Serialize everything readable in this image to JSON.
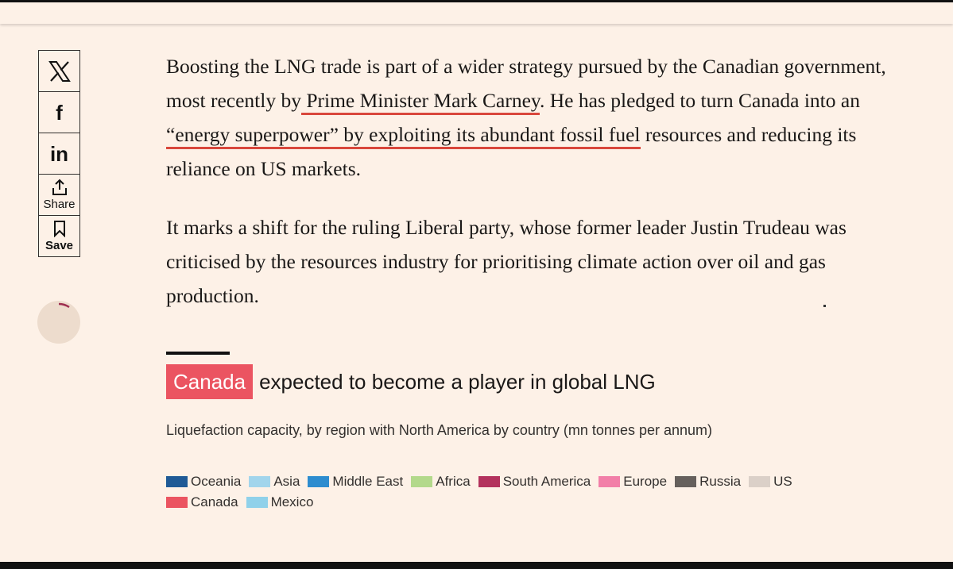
{
  "share": {
    "buttons": [
      "f",
      "in"
    ],
    "share_label": "Share",
    "save_label": "Save"
  },
  "article": {
    "paragraphs": [
      [
        {
          "text": "Boosting the LNG trade is part of a wider strategy pursued by the Canadian government, most recently by"
        },
        {
          "text": " Prime Minister Mark Carney",
          "link": true
        },
        {
          "text": ". He has pledged to turn Canada into an "
        },
        {
          "text": "“energy superpower” by exploiting its abundant fossil fuel",
          "link": true
        },
        {
          "text": " resources and reducing its reliance on US markets."
        }
      ],
      [
        {
          "text": "It marks a shift for the ruling Liberal party, whose former leader Justin Trudeau was criticised by the resources industry for prioritising climate action over oil and gas production."
        }
      ]
    ]
  },
  "chart": {
    "title_highlight": "Canada",
    "title": "expected to become a player in global LNG",
    "subtitle": "Liquefaction capacity, by region with North America by country (mn tonnes per annum)",
    "legend": [
      {
        "name": "Oceania",
        "color": "#1f5a96"
      },
      {
        "name": "Asia",
        "color": "#a2d5ec"
      },
      {
        "name": "Middle East",
        "color": "#2d8ccf"
      },
      {
        "name": "Africa",
        "color": "#b3d98b"
      },
      {
        "name": "South America",
        "color": "#b3325d"
      },
      {
        "name": "Europe",
        "color": "#f27fa8"
      },
      {
        "name": "Russia",
        "color": "#66605c"
      },
      {
        "name": "US",
        "color": "#dbd0c8"
      },
      {
        "name": "Canada",
        "color": "#eb5461"
      },
      {
        "name": "Mexico",
        "color": "#90d1ea"
      }
    ]
  }
}
